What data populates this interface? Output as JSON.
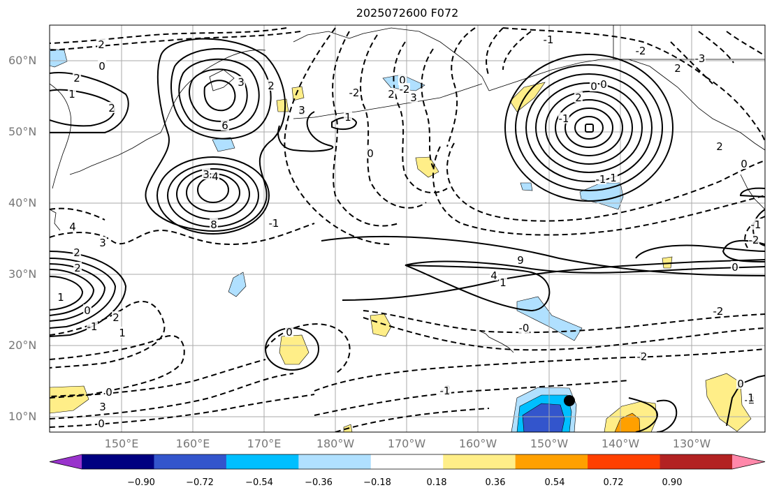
{
  "title": "2025072600 F072",
  "latitude_labels": [
    "60°N",
    "50°N",
    "40°N",
    "30°N",
    "20°N",
    "10°N"
  ],
  "longitude_labels": [
    "150°E",
    "160°E",
    "170°E",
    "180°W",
    "170°W",
    "160°W",
    "150°W",
    "140°W",
    "130°W"
  ],
  "colorbar": {
    "tick_labels": [
      "−0.90",
      "−0.72",
      "−0.54",
      "−0.36",
      "−0.18",
      "0.18",
      "0.36",
      "0.54",
      "0.72",
      "0.90"
    ],
    "colors": [
      "#9933cc",
      "#000080",
      "#3355cc",
      "#00bfff",
      "#b0e0ff",
      "#ffffff",
      "#ffee88",
      "#ffa000",
      "#ff4000",
      "#b22222",
      "#ff88aa"
    ]
  },
  "shading_colors": {
    "light_blue": "#b0e0ff",
    "mid_blue": "#00bfff",
    "dark_blue": "#3355cc",
    "light_yellow": "#ffee88",
    "orange": "#ffa000"
  },
  "contour_labels": [
    "2",
    "0",
    "2",
    "1",
    "2",
    "3",
    "0",
    "-2",
    "2",
    "3",
    "0",
    "-2",
    "-1",
    "-2",
    "-3",
    "2",
    "0",
    "0",
    "2",
    "-1",
    "-1",
    "1",
    "4",
    "3",
    "6",
    "8",
    "2",
    "2",
    "3",
    "4",
    "3",
    "2",
    "2",
    "1",
    "0",
    "-1",
    "2",
    "1",
    "0",
    "3",
    "9",
    "4",
    "1",
    "0",
    "-2",
    "2",
    "0",
    "-2",
    "-1",
    "0",
    "1",
    "0",
    "-2",
    "-2",
    "-0",
    "1",
    "-2",
    "-1",
    "0",
    "1",
    "0",
    "-1",
    "-2"
  ],
  "marker": "typhoon-center-dot"
}
